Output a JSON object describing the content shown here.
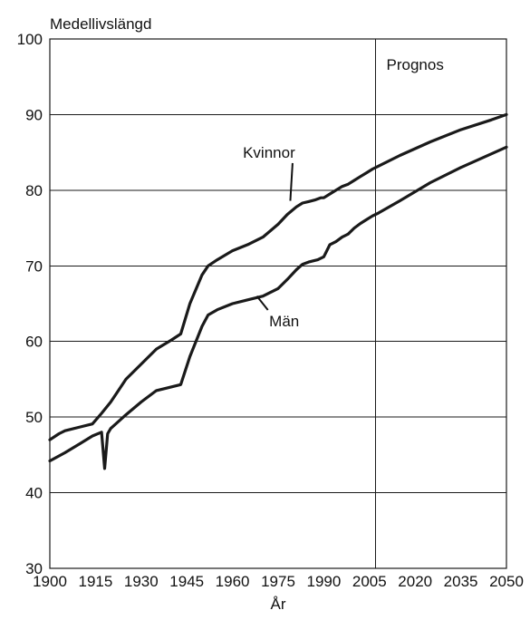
{
  "chart_data": {
    "type": "line",
    "title": "",
    "ylabel": "Medellivslängd",
    "xlabel": "År",
    "xlim": [
      1900,
      2050
    ],
    "ylim": [
      30,
      100
    ],
    "x_ticks": [
      1900,
      1915,
      1930,
      1945,
      1960,
      1975,
      1990,
      2005,
      2020,
      2035,
      2050
    ],
    "y_ticks": [
      30,
      40,
      50,
      60,
      70,
      80,
      90,
      100
    ],
    "grid": true,
    "vertical_marker": {
      "x": 2007,
      "label": "Prognos"
    },
    "line_color": "#1a1a1a",
    "series": [
      {
        "name": "Kvinnor",
        "x": [
          1900,
          1903,
          1905,
          1910,
          1914,
          1917,
          1920,
          1925,
          1930,
          1935,
          1940,
          1943,
          1946,
          1950,
          1952,
          1955,
          1960,
          1965,
          1970,
          1975,
          1978,
          1981,
          1983,
          1985,
          1987,
          1989,
          1990,
          1992,
          1994,
          1996,
          1998,
          2000,
          2002,
          2004,
          2006,
          2008,
          2015,
          2025,
          2035,
          2045,
          2050
        ],
        "values": [
          47.0,
          47.8,
          48.2,
          48.7,
          49.1,
          50.5,
          52.0,
          55.0,
          57.0,
          59.0,
          60.2,
          61.0,
          65.0,
          68.8,
          70.0,
          70.8,
          72.0,
          72.8,
          73.8,
          75.5,
          76.8,
          77.8,
          78.3,
          78.5,
          78.7,
          79.0,
          79.0,
          79.5,
          80.0,
          80.5,
          80.8,
          81.3,
          81.8,
          82.3,
          82.8,
          83.2,
          84.6,
          86.4,
          88.0,
          89.3,
          90.0
        ]
      },
      {
        "name": "Män",
        "x": [
          1900,
          1905,
          1910,
          1914,
          1917,
          1918,
          1919,
          1920,
          1925,
          1930,
          1935,
          1940,
          1943,
          1946,
          1950,
          1952,
          1955,
          1960,
          1965,
          1970,
          1975,
          1978,
          1981,
          1983,
          1985,
          1988,
          1990,
          1992,
          1994,
          1996,
          1998,
          2000,
          2002,
          2004,
          2006,
          2008,
          2015,
          2025,
          2035,
          2045,
          2050
        ],
        "values": [
          44.2,
          45.3,
          46.5,
          47.5,
          48.0,
          43.2,
          47.8,
          48.5,
          50.3,
          52.0,
          53.5,
          54.0,
          54.3,
          58.0,
          62.0,
          63.5,
          64.2,
          65.0,
          65.5,
          66.0,
          67.0,
          68.2,
          69.5,
          70.2,
          70.5,
          70.8,
          71.2,
          72.8,
          73.2,
          73.8,
          74.2,
          75.0,
          75.6,
          76.1,
          76.6,
          77.0,
          78.6,
          81.0,
          83.0,
          84.8,
          85.7
        ]
      }
    ],
    "annotations": [
      {
        "text": "Kvinnor",
        "x": 1972,
        "y": 84.3,
        "point_x": 1979,
        "point_y": 78.6
      },
      {
        "text": "Män",
        "x": 1977,
        "y": 62.0,
        "point_x": 1968,
        "point_y": 66.0
      }
    ]
  }
}
